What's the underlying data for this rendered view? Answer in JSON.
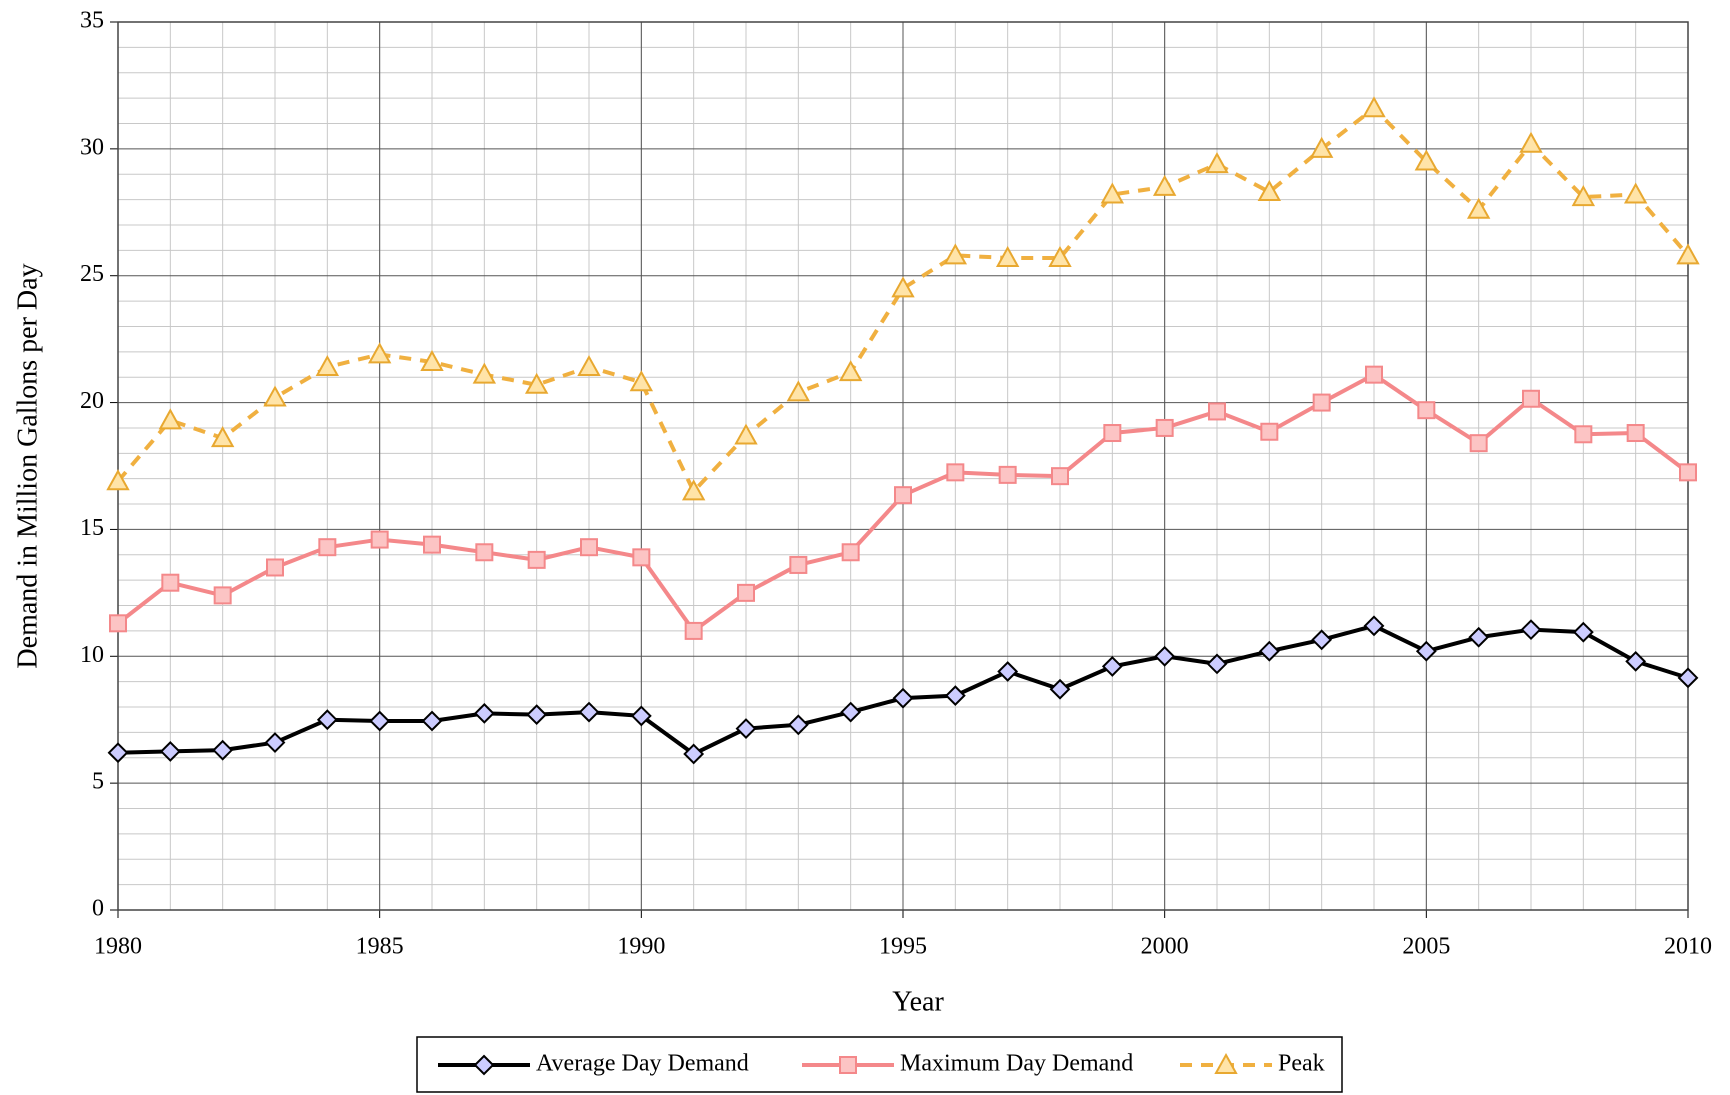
{
  "chart_data": {
    "type": "line",
    "x_label": "Year",
    "y_label": "Demand in Million Gallons per Day",
    "x": [
      1980,
      1981,
      1982,
      1983,
      1984,
      1985,
      1986,
      1987,
      1988,
      1989,
      1990,
      1991,
      1992,
      1993,
      1994,
      1995,
      1996,
      1997,
      1998,
      1999,
      2000,
      2001,
      2002,
      2003,
      2004,
      2005,
      2006,
      2007,
      2008,
      2009,
      2010
    ],
    "series": [
      {
        "name": "Average Day Demand",
        "color": "#000000",
        "marker": "diamond",
        "marker_fill": "#ccccff",
        "marker_stroke": "#000000",
        "dashed": false,
        "values": [
          6.2,
          6.25,
          6.3,
          6.6,
          7.5,
          7.45,
          7.45,
          7.75,
          7.7,
          7.8,
          7.65,
          6.15,
          7.15,
          7.3,
          7.8,
          8.35,
          8.45,
          9.4,
          8.7,
          9.6,
          10.0,
          9.7,
          10.2,
          10.65,
          11.2,
          10.2,
          10.75,
          11.05,
          10.95,
          9.8,
          9.15
        ]
      },
      {
        "name": "Maximum Day Demand",
        "color": "#f4888a",
        "marker": "square",
        "marker_fill": "#fcc4c4",
        "marker_stroke": "#f4888a",
        "dashed": false,
        "values": [
          11.3,
          12.9,
          12.4,
          13.5,
          14.3,
          14.6,
          14.4,
          14.1,
          13.8,
          14.3,
          13.9,
          11.0,
          12.5,
          13.6,
          14.1,
          16.35,
          17.25,
          17.15,
          17.1,
          18.8,
          19.0,
          19.65,
          18.85,
          20.0,
          21.1,
          19.7,
          18.4,
          20.15,
          18.75,
          18.8,
          17.25
        ]
      },
      {
        "name": "Peak",
        "color": "#f0b040",
        "marker": "triangle",
        "marker_fill": "#ffe4a8",
        "marker_stroke": "#e8a830",
        "dashed": true,
        "values": [
          16.9,
          19.3,
          18.6,
          20.2,
          21.4,
          21.9,
          21.6,
          21.1,
          20.7,
          21.4,
          20.8,
          16.5,
          18.7,
          20.4,
          21.2,
          24.5,
          25.8,
          25.7,
          25.7,
          28.2,
          28.5,
          29.4,
          28.3,
          30.0,
          31.6,
          29.5,
          27.6,
          30.2,
          28.1,
          28.2,
          25.8
        ]
      }
    ],
    "xlim": [
      1980,
      2010
    ],
    "xticks": [
      1980,
      1985,
      1990,
      1995,
      2000,
      2005,
      2010
    ],
    "ylim": [
      0,
      35
    ],
    "yticks": [
      0,
      5,
      10,
      15,
      20,
      25,
      30,
      35
    ],
    "grid": true,
    "minor_grid": true,
    "legend": "bottom"
  }
}
